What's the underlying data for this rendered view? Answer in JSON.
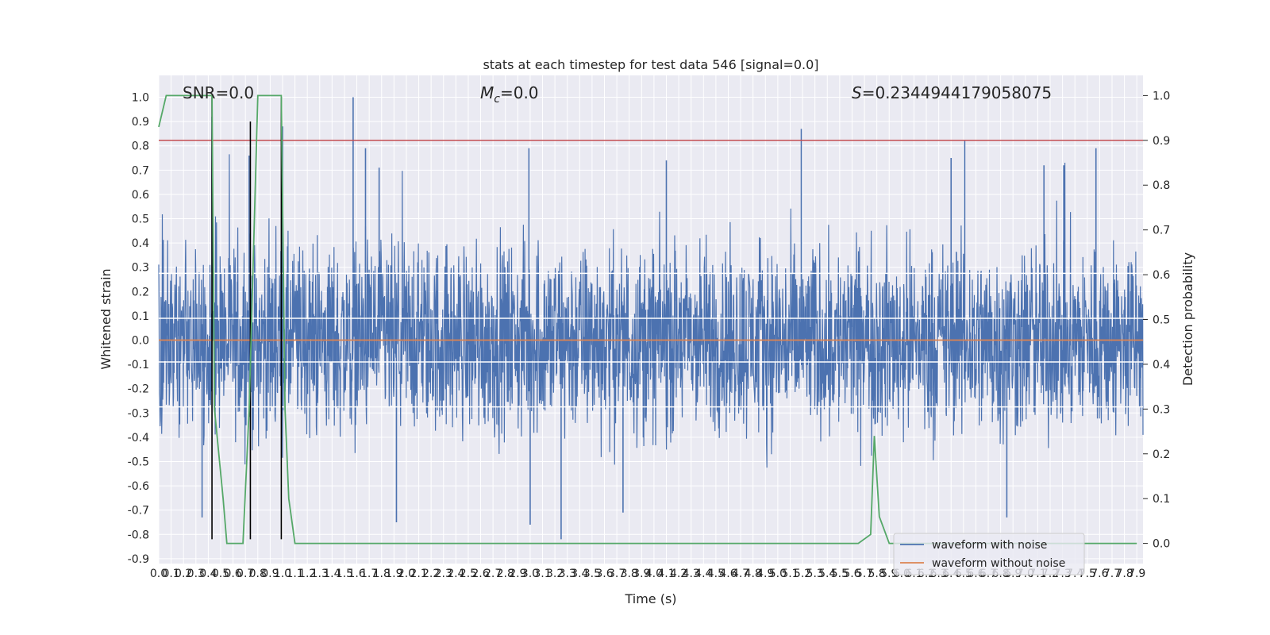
{
  "chart_data": {
    "type": "line",
    "title": "stats at each timestep for test data 546 [signal=0.0]",
    "xlabel": "Time (s)",
    "ylabel_left": "Whitened strain",
    "ylabel_right": "Detection probability",
    "xlim": [
      0.0,
      7.95
    ],
    "ylim_left": [
      -0.92,
      1.09
    ],
    "ylim_right": [
      0.0,
      1.0
    ],
    "ylim_right_display": [
      -0.045,
      1.045
    ],
    "x_ticks_step": 0.1,
    "x_ticks_count": 80,
    "y_left_ticks": [
      "1.0",
      "0.9",
      "0.8",
      "0.7",
      "0.6",
      "0.5",
      "0.4",
      "0.3",
      "0.2",
      "0.1",
      "0.0",
      "-0.1",
      "-0.2",
      "-0.3",
      "-0.4",
      "-0.5",
      "-0.6",
      "-0.7",
      "-0.8",
      "-0.9"
    ],
    "y_right_ticks": [
      "1.0",
      "0.9",
      "0.8",
      "0.7",
      "0.6",
      "0.5",
      "0.4",
      "0.3",
      "0.2",
      "0.1",
      "0.0"
    ],
    "grid": true,
    "background": "#eaeaf2",
    "annotations": {
      "snr": "SNR=0.0",
      "mc_sym": "M",
      "mc_sub": "c",
      "mc_val": "=0.0",
      "s_sym": "S",
      "s_val": "=0.2344944179058075"
    },
    "legend": {
      "position": "lower-right",
      "entries": [
        {
          "label": "waveform with noise",
          "color": "#4c72b0"
        },
        {
          "label": "waveform without noise",
          "color": "#dd8452"
        }
      ]
    },
    "series": [
      {
        "name": "waveform with noise",
        "axis": "left",
        "color": "#4c72b0",
        "noise_amplitude": 0.45,
        "spikes": [
          {
            "x": 0.43,
            "y": 0.92
          },
          {
            "x": 0.35,
            "y": -0.73
          },
          {
            "x": 0.73,
            "y": 0.76
          },
          {
            "x": 1.0,
            "y": 0.88
          },
          {
            "x": 1.57,
            "y": 1.0
          },
          {
            "x": 1.67,
            "y": 0.79
          },
          {
            "x": 1.78,
            "y": 0.71
          },
          {
            "x": 1.92,
            "y": -0.75
          },
          {
            "x": 2.99,
            "y": 0.79
          },
          {
            "x": 3.0,
            "y": -0.76
          },
          {
            "x": 3.25,
            "y": -0.82
          },
          {
            "x": 4.1,
            "y": 0.74
          },
          {
            "x": 3.75,
            "y": -0.71
          },
          {
            "x": 5.19,
            "y": 0.87
          },
          {
            "x": 5.2,
            "y": 0.08
          },
          {
            "x": 6.4,
            "y": 0.75
          },
          {
            "x": 6.51,
            "y": 0.82
          },
          {
            "x": 6.85,
            "y": -0.73
          },
          {
            "x": 7.31,
            "y": 0.72
          },
          {
            "x": 7.57,
            "y": 0.79
          },
          {
            "x": 7.15,
            "y": 0.72
          }
        ]
      },
      {
        "name": "waveform without noise",
        "axis": "left",
        "color": "#dd8452",
        "x": [
          0.0,
          7.95
        ],
        "y": [
          0.0,
          0.0
        ]
      },
      {
        "name": "detection probability",
        "axis": "right",
        "color": "#55a868",
        "x": [
          0.0,
          0.06,
          0.1,
          0.18,
          0.43,
          0.45,
          0.52,
          0.55,
          0.68,
          0.73,
          0.8,
          0.99,
          1.02,
          1.05,
          1.1,
          5.65,
          5.75,
          5.78,
          5.82,
          5.9,
          7.9
        ],
        "y": [
          0.93,
          1.0,
          1.0,
          1.0,
          1.0,
          0.3,
          0.1,
          0.0,
          0.0,
          0.3,
          1.0,
          1.0,
          0.3,
          0.1,
          0.0,
          0.0,
          0.02,
          0.24,
          0.06,
          0.0,
          0.0
        ]
      }
    ],
    "threshold_line": {
      "axis": "right",
      "y": 0.9,
      "color": "#c44e52"
    },
    "white_hlines_left": [
      -0.275,
      -0.09,
      0.09,
      0.275
    ],
    "vertical_lines": {
      "color": "#000000",
      "x": [
        0.43,
        0.74,
        0.99
      ],
      "y_top": [
        1.0,
        0.9,
        1.0
      ],
      "y_bottom": -0.82
    }
  }
}
